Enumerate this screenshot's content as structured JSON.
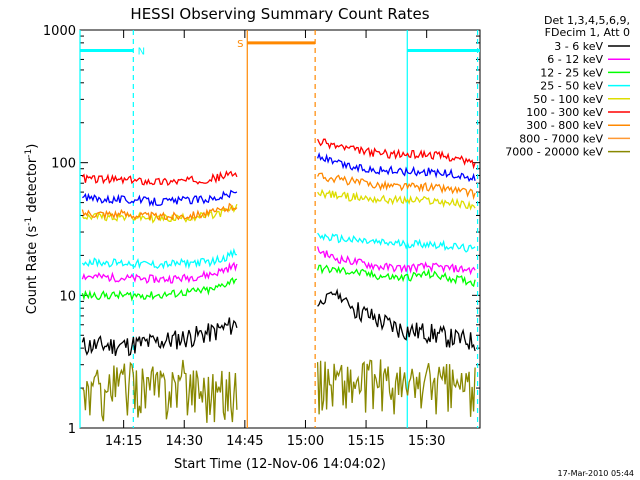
{
  "chart_data": {
    "type": "line",
    "title": "HESSI Observing Summary Count Rates",
    "xlabel": "Start Time (12-Nov-06 14:04:02)",
    "ylabel": "Count Rate (s",
    "ylabel_sup1": "-1",
    "ylabel_mid": " detector",
    "ylabel_sup2": "-1",
    "ylabel_end": ")",
    "yscale": "log",
    "ylim": [
      1,
      1000
    ],
    "xlim_minutes": [
      14.07,
      15.72
    ],
    "x_ticks": [
      "14:15",
      "14:30",
      "14:45",
      "15:00",
      "15:15",
      "15:30"
    ],
    "x_tick_values": [
      14.25,
      14.5,
      14.75,
      15.0,
      15.25,
      15.5
    ],
    "y_ticks": [
      "1",
      "10",
      "100",
      "1000"
    ],
    "y_tick_values": [
      1,
      10,
      100,
      1000
    ],
    "legend_header": [
      "Det 1,3,4,5,6,9,",
      "FDecim 1, Att 0"
    ],
    "legend_placement": "right",
    "series": [
      {
        "name": "3 - 6 keV",
        "color": "#000000",
        "seg1": [
          4.2,
          4.2,
          4.5,
          4.8,
          5.3,
          6.2
        ],
        "seg2": [
          8.5,
          10.5,
          8.0,
          6.5,
          5.5,
          5.3,
          4.8,
          4.5
        ]
      },
      {
        "name": "6 - 12 keV",
        "color": "#ff00ff",
        "seg1": [
          14.0,
          13.5,
          13.2,
          13.5,
          14.5,
          17.0
        ],
        "seg2": [
          22.0,
          19.0,
          18.0,
          16.5,
          16.0,
          16.5,
          16.0,
          15.5
        ]
      },
      {
        "name": "12 - 25 keV",
        "color": "#00ff00",
        "seg1": [
          10.0,
          10.0,
          10.0,
          10.5,
          11.0,
          13.5
        ],
        "seg2": [
          16.0,
          15.5,
          15.0,
          14.0,
          13.5,
          14.5,
          13.5,
          12.5
        ]
      },
      {
        "name": "25 - 50 keV",
        "color": "#00ffff",
        "seg1": [
          18.0,
          17.5,
          17.0,
          17.5,
          18.0,
          21.0
        ],
        "seg2": [
          28.0,
          27.0,
          26.0,
          25.0,
          24.5,
          24.5,
          23.5,
          22.0
        ]
      },
      {
        "name": "50 - 100 keV",
        "color": "#dddd00",
        "seg1": [
          40.0,
          39.0,
          38.0,
          38.5,
          40.0,
          46.0
        ],
        "seg2": [
          60.0,
          57.0,
          55.0,
          53.0,
          52.0,
          52.0,
          50.0,
          47.0
        ]
      },
      {
        "name": "100 - 300 keV",
        "color": "#ff0000",
        "seg1": [
          76.0,
          74.0,
          72.0,
          73.0,
          76.0,
          84.0
        ],
        "seg2": [
          145.0,
          135.0,
          125.0,
          118.0,
          115.0,
          116.0,
          110.0,
          98.0
        ]
      },
      {
        "name": "300 - 800 keV",
        "color": "#ff8800",
        "seg1": [
          42.0,
          41.0,
          39.0,
          40.0,
          42.0,
          48.0
        ],
        "seg2": [
          80.0,
          76.0,
          72.0,
          68.0,
          66.0,
          66.0,
          63.0,
          58.0
        ]
      },
      {
        "name": "800 - 7000 keV",
        "color": "#ff9933",
        "seg1": [],
        "seg2": []
      },
      {
        "name": "7000 - 20000 keV",
        "color": "#888800",
        "seg1": [
          1.8,
          2.2,
          2.0,
          2.3,
          1.9,
          2.0
        ],
        "seg2": [
          2.2,
          2.4,
          2.1,
          2.3,
          2.0,
          2.2,
          2.1,
          2.0
        ]
      },
      {
        "name": "",
        "color": "#0000ff",
        "seg1": [
          54.0,
          53.0,
          51.0,
          52.0,
          54.0,
          60.0
        ],
        "seg2": [
          112.0,
          100.0,
          92.0,
          88.0,
          86.0,
          86.0,
          82.0,
          75.0
        ]
      }
    ],
    "seg1_x": [
      14.08,
      14.25,
      14.4,
      14.5,
      14.62,
      14.72
    ],
    "seg2_x": [
      15.05,
      15.12,
      15.2,
      15.3,
      15.4,
      15.5,
      15.6,
      15.7
    ],
    "markers": [
      {
        "label": "N",
        "color": "#00ffff",
        "bar_level": 700,
        "bar_x": [
          14.07,
          14.29
        ],
        "lines": [
          {
            "x": 14.07,
            "style": "solid"
          },
          {
            "x": 14.29,
            "style": "dashed"
          }
        ]
      },
      {
        "label": "S",
        "color": "#ff8800",
        "bar_level": 800,
        "bar_x": [
          14.76,
          15.04
        ],
        "lines": [
          {
            "x": 14.76,
            "style": "solid"
          },
          {
            "x": 15.04,
            "style": "dashed"
          }
        ]
      },
      {
        "label": "",
        "color": "#00ffff",
        "bar_level": 700,
        "bar_x": [
          15.42,
          15.72
        ],
        "lines": [
          {
            "x": 15.42,
            "style": "solid"
          },
          {
            "x": 15.71,
            "style": "dashed"
          }
        ]
      }
    ],
    "gaps_minutes": [
      [
        14.73,
        15.05
      ]
    ],
    "footer_date": "17-Mar-2010 05:44"
  }
}
